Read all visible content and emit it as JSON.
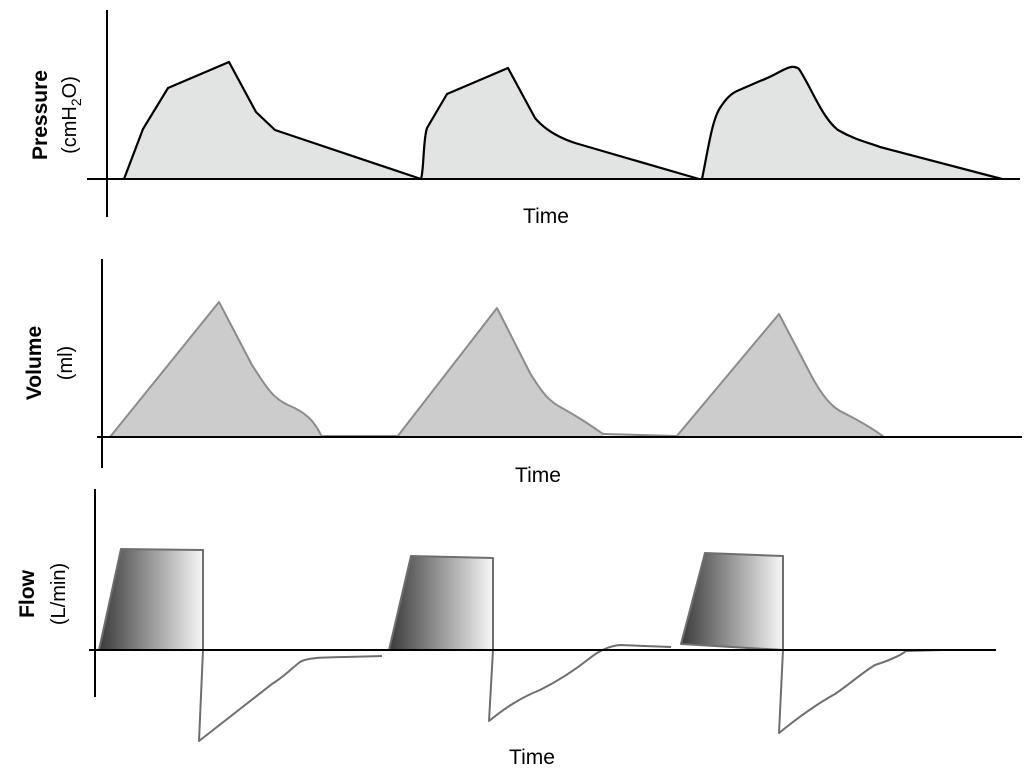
{
  "panels": {
    "pressure": {
      "title": "Pressure",
      "unit_prefix": "(cmH",
      "unit_sub": "2",
      "unit_suffix": "O)",
      "xlabel": "Time"
    },
    "volume": {
      "title": "Volume",
      "unit": "(ml)",
      "xlabel": "Time"
    },
    "flow": {
      "title": "Flow",
      "unit": "(L/min)",
      "xlabel": "Time"
    }
  },
  "colors": {
    "axis": "#000000",
    "pressure_fill": "#e2e3e3",
    "pressure_stroke": "#000000",
    "volume_fill": "#cccccc",
    "volume_stroke": "#8c8c8c",
    "flow_gradient_dark": "#3a3a3a",
    "flow_gradient_light": "#f7f7f7",
    "flow_stroke": "#6e6e6e"
  }
}
